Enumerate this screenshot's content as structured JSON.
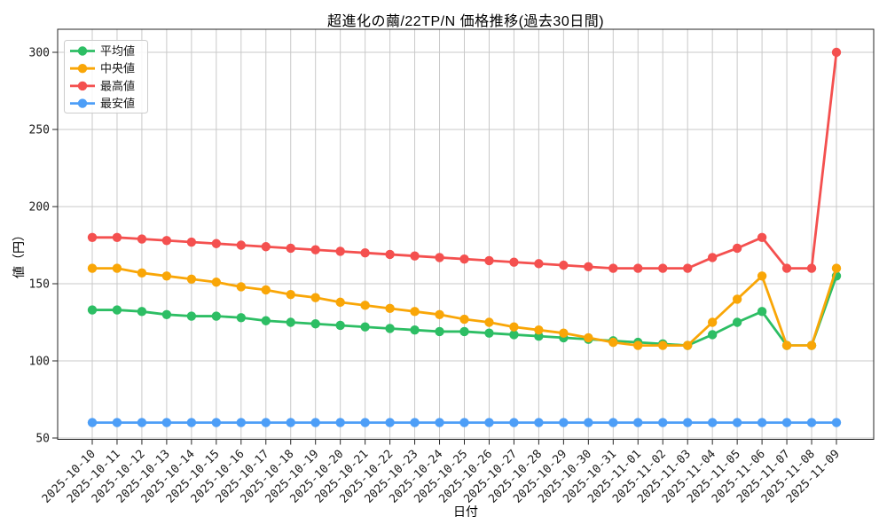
{
  "title": "超進化の繭/22TP/N 価格推移(過去30日間)",
  "axes": {
    "xlabel": "日付",
    "ylabel": "値（円）"
  },
  "chart_data": {
    "type": "line",
    "title": "超進化の繭/22TP/N 価格推移(過去30日間)",
    "xlabel": "日付",
    "ylabel": "値（円）",
    "grid": true,
    "legend_position": "upper left",
    "ylim": [
      48,
      315
    ],
    "yticks": [
      50,
      100,
      150,
      200,
      250,
      300
    ],
    "categories": [
      "2025-10-10",
      "2025-10-11",
      "2025-10-12",
      "2025-10-13",
      "2025-10-14",
      "2025-10-15",
      "2025-10-16",
      "2025-10-17",
      "2025-10-18",
      "2025-10-19",
      "2025-10-20",
      "2025-10-21",
      "2025-10-22",
      "2025-10-23",
      "2025-10-24",
      "2025-10-25",
      "2025-10-26",
      "2025-10-27",
      "2025-10-28",
      "2025-10-29",
      "2025-10-30",
      "2025-10-31",
      "2025-11-01",
      "2025-11-02",
      "2025-11-03",
      "2025-11-04",
      "2025-11-05",
      "2025-11-06",
      "2025-11-07",
      "2025-11-08",
      "2025-11-09"
    ],
    "series": [
      {
        "key": "mean",
        "name": "平均値",
        "color": "#2dbe64",
        "values": [
          133,
          133,
          132,
          130,
          129,
          129,
          128,
          126,
          125,
          124,
          123,
          122,
          121,
          120,
          119,
          119,
          118,
          117,
          116,
          115,
          114,
          113,
          112,
          111,
          110,
          117,
          125,
          132,
          110,
          110,
          155
        ]
      },
      {
        "key": "median",
        "name": "中央値",
        "color": "#f9a607",
        "values": [
          160,
          160,
          157,
          155,
          153,
          151,
          148,
          146,
          143,
          141,
          138,
          136,
          134,
          132,
          130,
          127,
          125,
          122,
          120,
          118,
          115,
          112,
          110,
          110,
          110,
          125,
          140,
          155,
          110,
          110,
          160
        ]
      },
      {
        "key": "max",
        "name": "最高値",
        "color": "#f4504f",
        "values": [
          180,
          180,
          179,
          178,
          177,
          176,
          175,
          174,
          173,
          172,
          171,
          170,
          169,
          168,
          167,
          166,
          165,
          164,
          163,
          162,
          161,
          160,
          160,
          160,
          160,
          167,
          173,
          180,
          160,
          160,
          300
        ]
      },
      {
        "key": "min",
        "name": "最安値",
        "color": "#4d9ef7",
        "values": [
          60,
          60,
          60,
          60,
          60,
          60,
          60,
          60,
          60,
          60,
          60,
          60,
          60,
          60,
          60,
          60,
          60,
          60,
          60,
          60,
          60,
          60,
          60,
          60,
          60,
          60,
          60,
          60,
          60,
          60,
          60
        ]
      }
    ]
  }
}
